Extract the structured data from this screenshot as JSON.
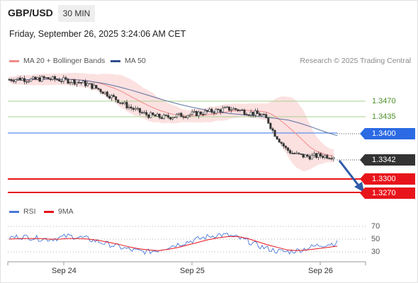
{
  "header": {
    "symbol": "GBP/USD",
    "timeframe": "30 MIN",
    "datetime": "Friday, September 26, 2025 3:24:06 AM CET"
  },
  "legend": {
    "ma20_label": "MA 20 + Bollinger Bands",
    "ma20_color": "#f08a8a",
    "ma50_label": "MA 50",
    "ma50_color": "#2f4f8f",
    "credit": "Research © 2025 Trading Central"
  },
  "levels": {
    "resistance_2": "1.3470",
    "resistance_1": "1.3435",
    "pivot": "1.3400",
    "last_price": "1.3342",
    "support_1": "1.3300",
    "support_2": "1.3270",
    "green_color": "#7ab648",
    "pivot_color": "#2b6ae3",
    "support_color": "#e8141b"
  },
  "rsi": {
    "rsi_label": "RSI",
    "rsi_color": "#4a78d8",
    "ma_label": "9MA",
    "ma_color": "#e8141b",
    "level_high": "70",
    "level_mid": "50",
    "level_low": "30"
  },
  "xaxis": {
    "labels": [
      "Sep 24",
      "Sep 25",
      "Sep 26"
    ]
  },
  "chart_data": {
    "type": "candlestick",
    "y_range": [
      1.323,
      1.356
    ],
    "price_path": [
      1.353,
      1.3531,
      1.3532,
      1.353,
      1.3529,
      1.3531,
      1.3533,
      1.3531,
      1.353,
      1.3528,
      1.3527,
      1.3525,
      1.3522,
      1.3518,
      1.3512,
      1.3505,
      1.3497,
      1.3488,
      1.348,
      1.347,
      1.3462,
      1.3455,
      1.3448,
      1.3443,
      1.344,
      1.3438,
      1.3437,
      1.3439,
      1.3441,
      1.3443,
      1.3444,
      1.3446,
      1.3448,
      1.345,
      1.3452,
      1.3455,
      1.3457,
      1.3458,
      1.3456,
      1.3452,
      1.3448,
      1.3446,
      1.3443,
      1.343,
      1.34,
      1.338,
      1.336,
      1.335,
      1.3345,
      1.3342,
      1.3341,
      1.3342,
      1.3343,
      1.3342,
      1.3342
    ],
    "ma50_path": [
      1.3528,
      1.3529,
      1.353,
      1.3531,
      1.3531,
      1.353,
      1.3528,
      1.3524,
      1.3519,
      1.3512,
      1.3504,
      1.3495,
      1.3486,
      1.3477,
      1.3469,
      1.3462,
      1.3456,
      1.3451,
      1.3447,
      1.3444,
      1.3441,
      1.3438,
      1.3434,
      1.343,
      1.3422,
      1.3412,
      1.3401,
      1.3392
    ],
    "rsi_path": [
      52,
      54,
      53,
      51,
      50,
      52,
      55,
      53,
      50,
      46,
      42,
      38,
      34,
      31,
      30,
      33,
      38,
      42,
      46,
      50,
      54,
      57,
      56,
      52,
      47,
      40,
      35,
      31,
      30,
      32,
      36,
      40,
      42,
      44
    ],
    "rsi_ma_path": [
      50,
      51,
      51,
      51,
      50,
      50,
      51,
      51,
      50,
      48,
      45,
      42,
      38,
      35,
      33,
      32,
      34,
      37,
      41,
      45,
      49,
      52,
      54,
      54,
      51,
      46,
      41,
      37,
      33,
      32,
      33,
      35,
      37,
      39
    ]
  }
}
